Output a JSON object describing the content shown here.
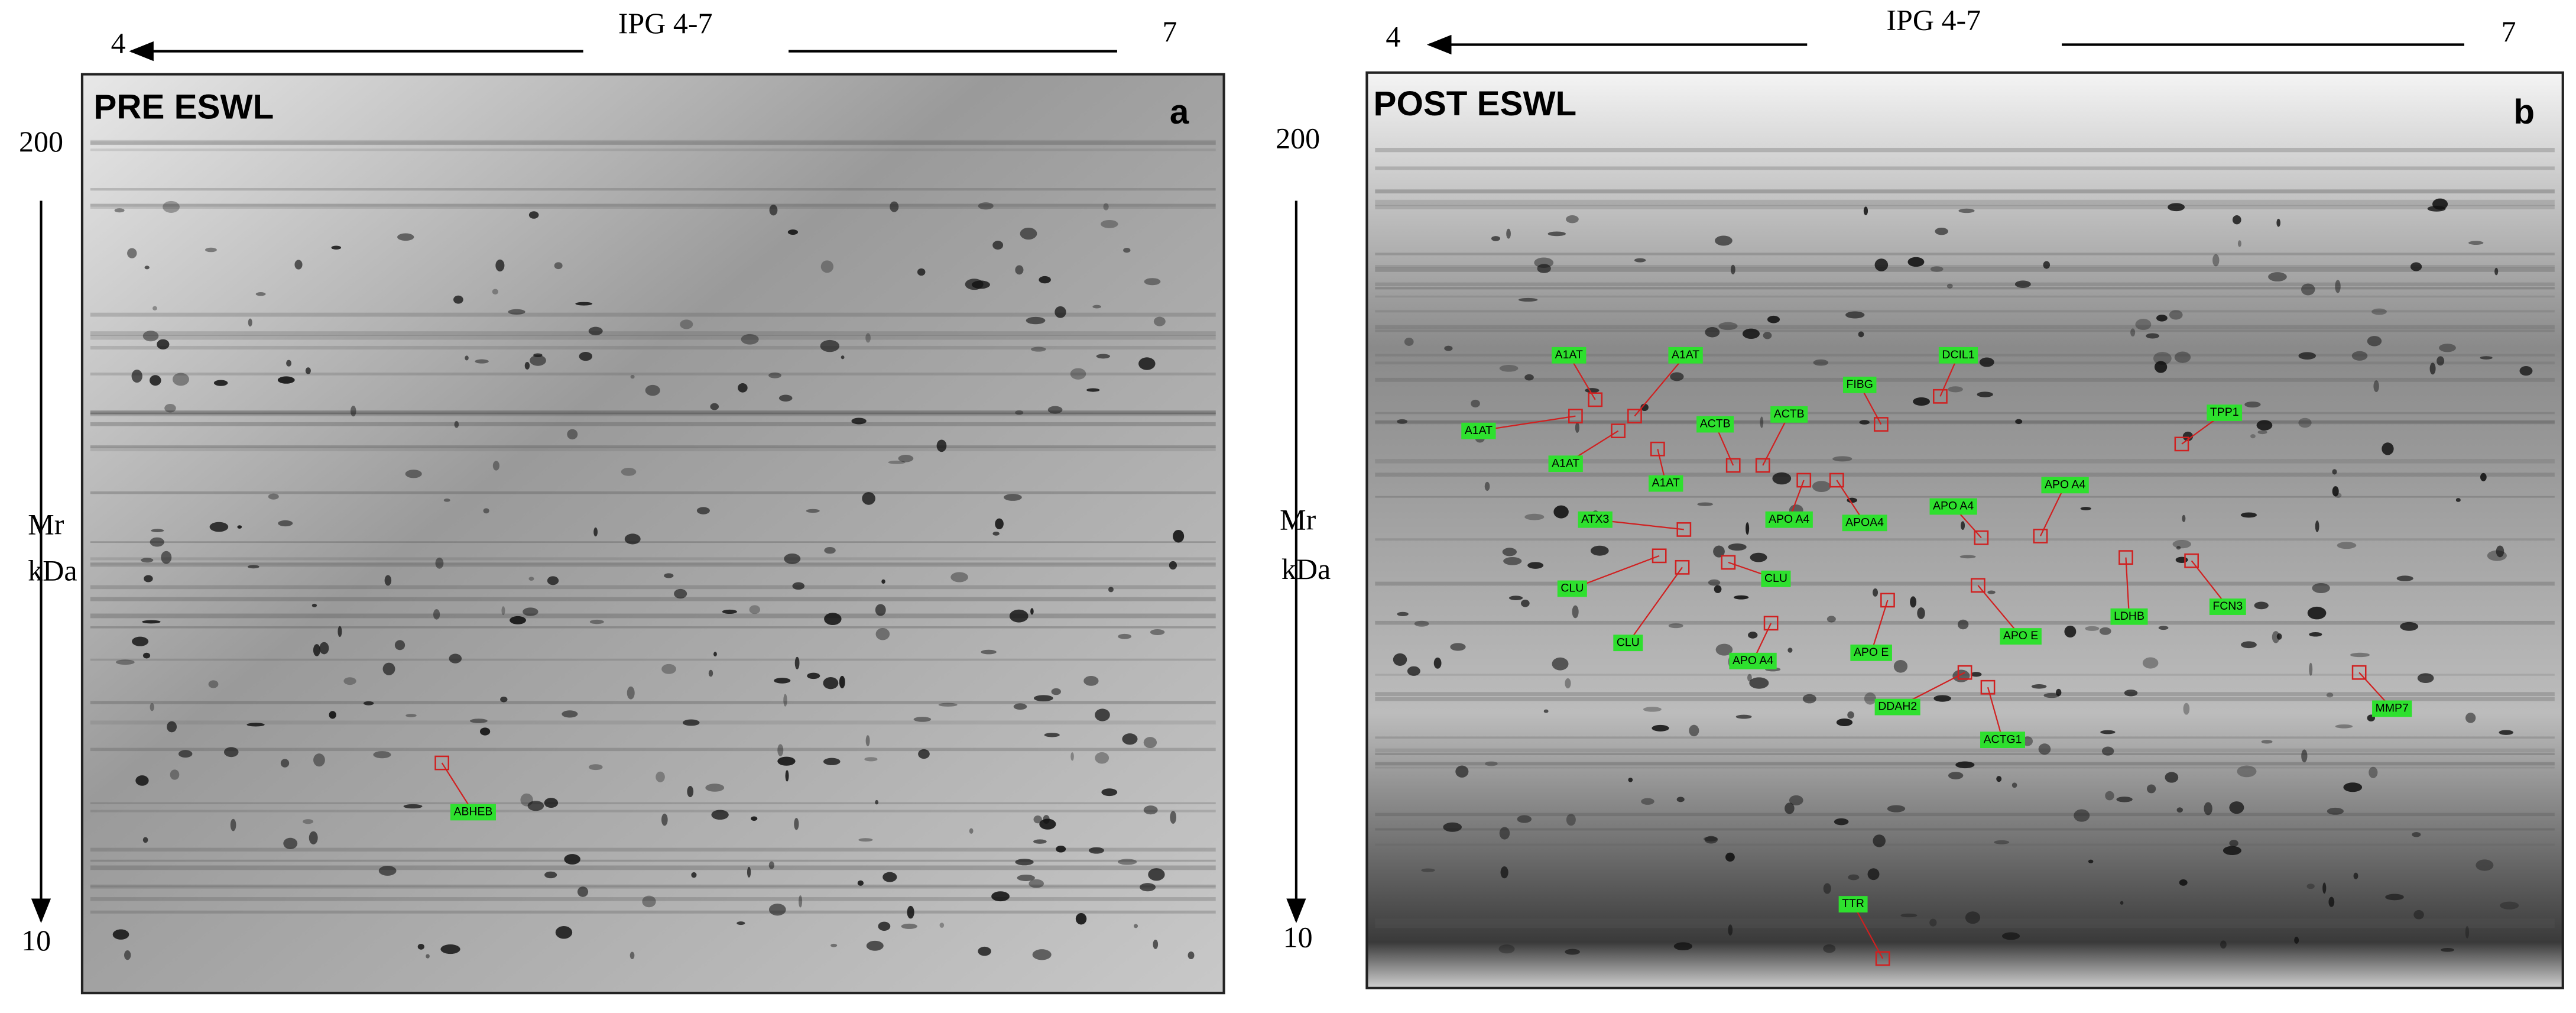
{
  "panels": [
    {
      "letter": "a",
      "title": "PRE ESWL",
      "ipg": "IPG 4-7",
      "ph_low": "4",
      "ph_high": "7",
      "mw_high": "200",
      "mw_low": "10",
      "mr": "Mr",
      "kda": "kDa",
      "spots": [
        "ABHEB"
      ]
    },
    {
      "letter": "b",
      "title": "POST ESWL",
      "ipg": "IPG 4-7",
      "ph_low": "4",
      "ph_high": "7",
      "mw_high": "200",
      "mw_low": "10",
      "mr": "Mr",
      "kda": "kDa",
      "spots": [
        "A1AT",
        "A1AT",
        "A1AT",
        "A1AT",
        "A1AT",
        "ACTB",
        "ACTB",
        "FIBG",
        "DCIL1",
        "TPP1",
        "APO A4",
        "APOA4",
        "APO A4",
        "APO A4",
        "ATX3",
        "CLU",
        "CLU",
        "CLU",
        "APO  A4",
        "APO  E",
        "APO E",
        "LDHB",
        "FCN3",
        "MMP7",
        "DDAH2",
        "ACTG1",
        "TTR"
      ]
    }
  ]
}
